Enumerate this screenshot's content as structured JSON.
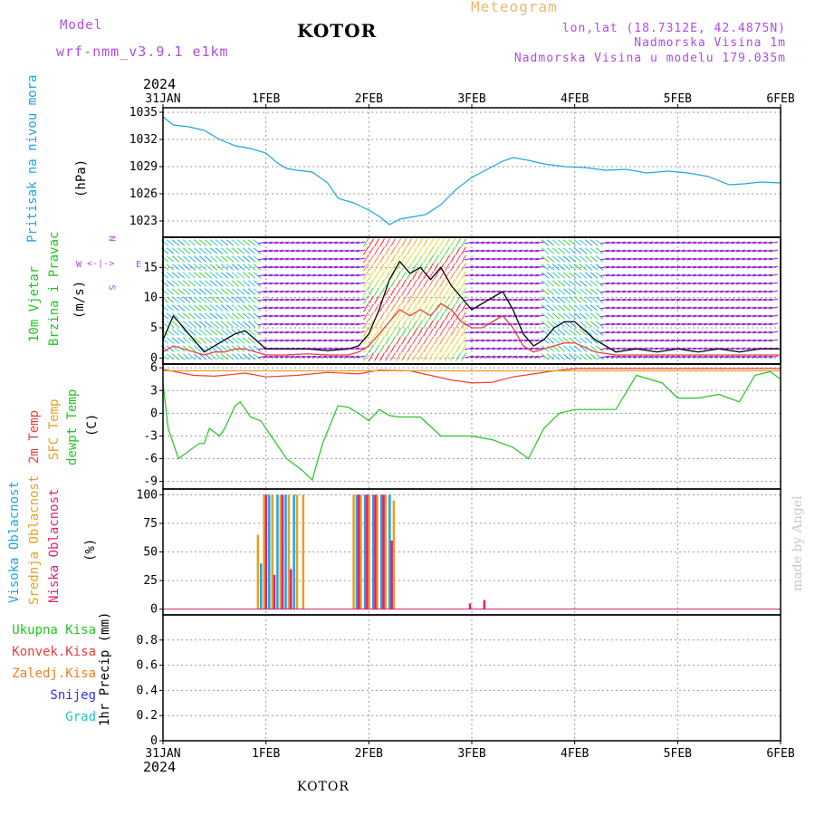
{
  "header": {
    "model_label": "Model",
    "model_name": "wrf-nmm_v3.9.1  e1km",
    "title": "KOTOR",
    "meteogram": "Meteogram",
    "lonlat": "lon,lat (18.7312E, 42.4875N)",
    "elev": "Nadmorska Visina 1m",
    "elev_model": "Nadmorska Visina u modelu 179.035m",
    "year_top": "2024",
    "year_bottom": "2024",
    "footer": "KOTOR",
    "watermark": "made by Angel"
  },
  "time_axis": [
    "31JAN",
    "1FEB",
    "2FEB",
    "3FEB",
    "4FEB",
    "5FEB",
    "6FEB"
  ],
  "panels": {
    "pressure": {
      "labels": [
        {
          "text": "Pritisak na nivou mora",
          "color": "#1ea5e0"
        },
        {
          "text": "(hPa)",
          "color": "#000000"
        }
      ]
    },
    "wind": {
      "labels": [
        {
          "text": "10m Vjetar",
          "color": "#22c422"
        },
        {
          "text": "Brzina i Pravac",
          "color": "#22c422"
        },
        {
          "text": "(m/s)",
          "color": "#000000"
        }
      ],
      "compass": {
        "n": "N",
        "s": "S",
        "e": "E",
        "w": "W"
      }
    },
    "temp": {
      "labels": [
        {
          "text": "2m Temp",
          "color": "#f03c3c"
        },
        {
          "text": "SFC Temp",
          "color": "#e8a020"
        },
        {
          "text": "dewpt Temp",
          "color": "#22c422"
        },
        {
          "text": "(C)",
          "color": "#000000"
        }
      ]
    },
    "cloud": {
      "labels": [
        {
          "text": "Visoka Oblacnost",
          "color": "#1ea5e0"
        },
        {
          "text": "Srednja Oblacnost",
          "color": "#e8a020"
        },
        {
          "text": "Niska Oblacnost",
          "color": "#e0207a"
        },
        {
          "text": "(%)",
          "color": "#000000"
        }
      ]
    },
    "precip": {
      "labels": [
        {
          "text": "Ukupna Kisa",
          "color": "#22c422"
        },
        {
          "text": "Konvek.Kisa",
          "color": "#f03c3c"
        },
        {
          "text": "Zaledj.Kisa",
          "color": "#f08020"
        },
        {
          "text": "Snijeg",
          "color": "#3030e0"
        },
        {
          "text": "Grad",
          "color": "#20c8c8"
        }
      ],
      "ylabel": "1hr Precip (mm)"
    }
  },
  "chart_data": [
    {
      "type": "line",
      "title": "",
      "ylabel": "(hPa)",
      "ylim": [
        1021.2,
        1035.5
      ],
      "yticks": [
        1023,
        1026,
        1029,
        1032,
        1035
      ],
      "color": "#1ea5e0",
      "series": [
        {
          "x": [
            0,
            0.1,
            0.25,
            0.4,
            0.55,
            0.7,
            0.85,
            1.0,
            1.1,
            1.2,
            1.3,
            1.45,
            1.6,
            1.7,
            1.85,
            2.0,
            2.1,
            2.2,
            2.3,
            2.45,
            2.55,
            2.7,
            2.85,
            3.0,
            3.1,
            3.2,
            3.3,
            3.4,
            3.55,
            3.7,
            3.9,
            4.1,
            4.3,
            4.5,
            4.7,
            4.9,
            5.1,
            5.3,
            5.5,
            5.65,
            5.8,
            6.0
          ],
          "y": [
            1034.5,
            1033.6,
            1033.4,
            1033.0,
            1032.0,
            1031.3,
            1031.0,
            1030.5,
            1029.5,
            1028.8,
            1028.6,
            1028.4,
            1027.2,
            1025.5,
            1025.0,
            1024.2,
            1023.5,
            1022.6,
            1023.2,
            1023.5,
            1023.7,
            1024.8,
            1026.5,
            1027.8,
            1028.4,
            1029.0,
            1029.6,
            1030.0,
            1029.7,
            1029.3,
            1029.0,
            1028.9,
            1028.6,
            1028.7,
            1028.3,
            1028.5,
            1028.3,
            1027.9,
            1027.0,
            1027.1,
            1027.3,
            1027.2
          ]
        }
      ]
    },
    {
      "type": "line",
      "title": "",
      "ylabel": "(m/s)",
      "ylim": [
        -1,
        20
      ],
      "yticks": [
        0,
        5,
        10,
        15
      ],
      "series": [
        {
          "x": [
            0,
            0.1,
            0.2,
            0.3,
            0.4,
            0.5,
            0.6,
            0.7,
            0.8,
            0.9,
            1.0,
            1.2,
            1.4,
            1.6,
            1.8,
            1.9,
            2.0,
            2.1,
            2.2,
            2.3,
            2.4,
            2.5,
            2.6,
            2.7,
            2.8,
            2.9,
            3.0,
            3.1,
            3.2,
            3.3,
            3.4,
            3.5,
            3.6,
            3.7,
            3.8,
            3.9,
            4.0,
            4.2,
            4.4,
            4.6,
            4.8,
            5.0,
            5.2,
            5.4,
            5.6,
            5.8,
            6.0
          ],
          "y": [
            3,
            7,
            5,
            3,
            1,
            2,
            3,
            4,
            4.5,
            3,
            1.5,
            1.5,
            1.5,
            1.2,
            1.5,
            2,
            4,
            8,
            13,
            16,
            14,
            15,
            13,
            15,
            12,
            10,
            8,
            9,
            10,
            11,
            8,
            4,
            2,
            3,
            5,
            6,
            6,
            3,
            1,
            1.5,
            1,
            1.5,
            1,
            1.5,
            1,
            1.5,
            1.5
          ]
        },
        {
          "x": [
            0,
            0.1,
            0.2,
            0.3,
            0.4,
            0.5,
            0.6,
            0.7,
            0.8,
            0.9,
            1.0,
            1.2,
            1.4,
            1.6,
            1.8,
            1.9,
            2.0,
            2.1,
            2.2,
            2.3,
            2.4,
            2.5,
            2.6,
            2.7,
            2.8,
            2.9,
            3.0,
            3.1,
            3.2,
            3.3,
            3.4,
            3.5,
            3.6,
            3.7,
            3.8,
            3.9,
            4.0,
            4.2,
            4.4,
            4.6,
            4.8,
            5.0,
            5.2,
            5.4,
            5.6,
            5.8,
            6.0
          ],
          "y": [
            1,
            2,
            1.5,
            1,
            0.5,
            1,
            1,
            1.5,
            1.5,
            1,
            0.5,
            0.5,
            0.7,
            0.5,
            0.5,
            1,
            2,
            4,
            6,
            8,
            7,
            8,
            7,
            9,
            8,
            6,
            5,
            5,
            6,
            7,
            5,
            2,
            1,
            1.5,
            2,
            2.5,
            2.5,
            1,
            0.5,
            0.5,
            0.5,
            0.5,
            0.5,
            0.5,
            0.5,
            0.5,
            0.5
          ]
        }
      ]
    },
    {
      "type": "line",
      "title": "",
      "ylabel": "(C)",
      "ylim": [
        -10,
        6.5
      ],
      "yticks": [
        -9,
        -6,
        -3,
        0,
        3,
        6
      ],
      "series": [
        {
          "color": "#f03c3c",
          "x": [
            0,
            0.3,
            0.5,
            0.8,
            1.0,
            1.3,
            1.6,
            1.9,
            2.1,
            2.4,
            2.8,
            3.0,
            3.2,
            3.4,
            3.6,
            3.8,
            4.0,
            4.5,
            5.0,
            5.5,
            6.0
          ],
          "y": [
            5.8,
            5,
            4.9,
            5.3,
            4.8,
            5.0,
            5.4,
            5.2,
            5.7,
            5.6,
            4.4,
            4.0,
            4.1,
            4.8,
            5.2,
            5.6,
            5.9,
            5.9,
            5.9,
            5.9,
            5.9
          ]
        },
        {
          "color": "#e8a020",
          "x": [
            0,
            6.0
          ],
          "y": [
            5.6,
            5.6
          ]
        },
        {
          "color": "#22c422",
          "x": [
            0,
            0.05,
            0.15,
            0.25,
            0.35,
            0.4,
            0.45,
            0.55,
            0.6,
            0.7,
            0.75,
            0.85,
            0.95,
            1.05,
            1.2,
            1.35,
            1.45,
            1.55,
            1.7,
            1.8,
            1.9,
            2.0,
            2.1,
            2.2,
            2.3,
            2.5,
            2.7,
            2.9,
            3.0,
            3.2,
            3.4,
            3.55,
            3.7,
            3.85,
            4.0,
            4.2,
            4.4,
            4.6,
            4.85,
            5.0,
            5.2,
            5.4,
            5.6,
            5.75,
            5.9,
            6.0
          ],
          "y": [
            4,
            -2,
            -6,
            -5,
            -4,
            -4,
            -2,
            -3,
            -2,
            1,
            1.5,
            -0.5,
            -1,
            -3,
            -6,
            -7.5,
            -8.8,
            -4,
            1,
            0.8,
            0,
            -1,
            0.5,
            -0.3,
            -0.5,
            -0.5,
            -3,
            -3,
            -3,
            -3.5,
            -4.5,
            -6,
            -2,
            0,
            0.5,
            0.5,
            0.5,
            5,
            4,
            2,
            2,
            2.5,
            1.5,
            5,
            5.5,
            4.5
          ]
        }
      ]
    },
    {
      "type": "bar",
      "title": "",
      "ylabel": "(%)",
      "ylim": [
        -5,
        105
      ],
      "yticks": [
        0,
        25,
        50,
        75,
        100
      ],
      "series": [
        {
          "name": "Visoka Oblacnost",
          "color": "#1ea5e0",
          "x": [
            0.95,
            1.03,
            1.11,
            1.19,
            1.27,
            1.88,
            1.96,
            2.04,
            2.12,
            2.2
          ],
          "values": [
            40,
            100,
            100,
            100,
            100,
            100,
            100,
            100,
            100,
            100
          ]
        },
        {
          "name": "Srednja Oblacnost",
          "color": "#e8a020",
          "x": [
            0.92,
            0.98,
            1.06,
            1.14,
            1.22,
            1.3,
            1.36,
            1.85,
            1.92,
            2.0,
            2.08,
            2.16,
            2.24
          ],
          "values": [
            65,
            100,
            100,
            100,
            100,
            100,
            100,
            100,
            100,
            100,
            100,
            100,
            95
          ]
        },
        {
          "name": "Niska Oblacnost",
          "color": "#e0207a",
          "x": [
            1.0,
            1.08,
            1.16,
            1.24,
            1.9,
            1.98,
            2.06,
            2.14,
            2.22,
            2.98,
            3.12
          ],
          "values": [
            100,
            30,
            100,
            35,
            100,
            100,
            100,
            100,
            60,
            5,
            8
          ]
        }
      ]
    },
    {
      "type": "bar",
      "title": "",
      "ylabel": "1hr Precip (mm)",
      "ylim": [
        0,
        1.0
      ],
      "yticks": [
        0,
        0.2,
        0.4,
        0.6,
        0.8
      ],
      "series": []
    }
  ]
}
